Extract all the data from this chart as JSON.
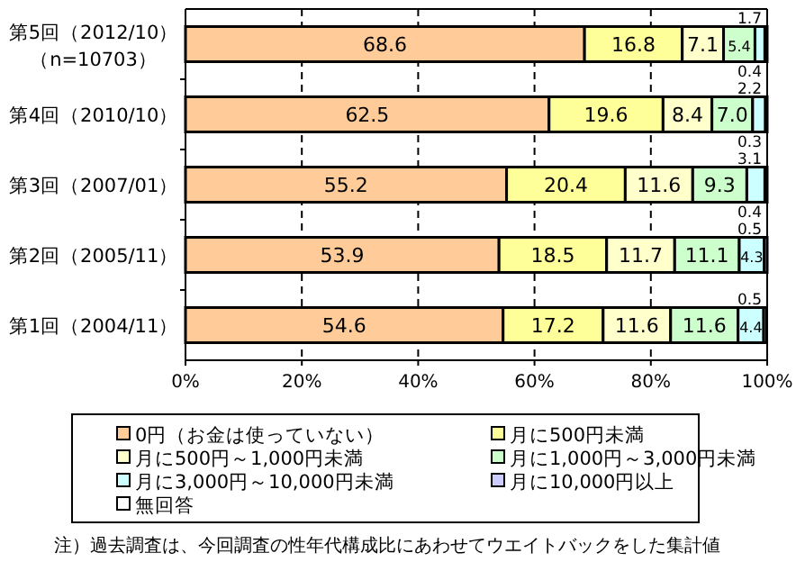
{
  "chart_data": {
    "type": "bar",
    "orientation": "horizontal",
    "stacked": true,
    "grid": "x",
    "legend": "bottom",
    "categories": [
      "第5回（2012/10）（n=10703）",
      "第4回（2010/10）",
      "第3回（2007/01）",
      "第2回（2005/11）",
      "第1回（2004/11）"
    ],
    "xlim": [
      0,
      100
    ],
    "xticks": [
      {
        "value": 0,
        "label": "0%"
      },
      {
        "value": 20,
        "label": "20%"
      },
      {
        "value": 40,
        "label": "40%"
      },
      {
        "value": 60,
        "label": "60%"
      },
      {
        "value": 80,
        "label": "80%"
      },
      {
        "value": 100,
        "label": "100%"
      }
    ],
    "series": [
      {
        "name": "0円（お金は使っていない）",
        "color": "#ffcc99",
        "values": [
          68.6,
          62.5,
          55.2,
          53.9,
          54.6
        ],
        "value_labels": [
          "68.6",
          "62.5",
          "55.2",
          "53.9",
          "54.6"
        ]
      },
      {
        "name": "月に500円未満",
        "color": "#ffff99",
        "values": [
          16.8,
          19.6,
          20.4,
          18.5,
          17.2
        ],
        "value_labels": [
          "16.8",
          "19.6",
          "20.4",
          "18.5",
          "17.2"
        ]
      },
      {
        "name": "月に500円～1,000円未満",
        "color": "#ffffcc",
        "values": [
          7.1,
          8.4,
          11.6,
          11.7,
          11.6
        ],
        "value_labels": [
          "7.1",
          "8.4",
          "11.6",
          "11.7",
          "11.6"
        ]
      },
      {
        "name": "月に1,000円～3,000円未満",
        "color": "#ccffcc",
        "values": [
          5.4,
          7.0,
          9.3,
          11.1,
          11.6
        ],
        "value_labels": [
          "5.4",
          "7.0",
          "9.3",
          "11.1",
          "11.6"
        ]
      },
      {
        "name": "月に3,000円～10,000円未満",
        "color": "#ccffff",
        "values": [
          1.7,
          2.2,
          3.1,
          4.3,
          4.4
        ],
        "value_labels": [
          "1.7",
          "2.2",
          "3.1",
          "4.3",
          "4.4"
        ]
      },
      {
        "name": "月に10,000円以上",
        "color": "#ccccff",
        "values": [
          0.4,
          0.3,
          0.4,
          0.5,
          0.5
        ],
        "value_labels": [
          "0.4",
          "0.3",
          "0.4",
          "0.5",
          "0.5"
        ]
      },
      {
        "name": "無回答",
        "color": "#ffffff",
        "values": [
          null,
          null,
          null,
          null,
          null
        ]
      }
    ],
    "annotations": [
      "注）過去調査は、今回調査の性年代構成比にあわせてウエイトバックをした集計値"
    ]
  }
}
